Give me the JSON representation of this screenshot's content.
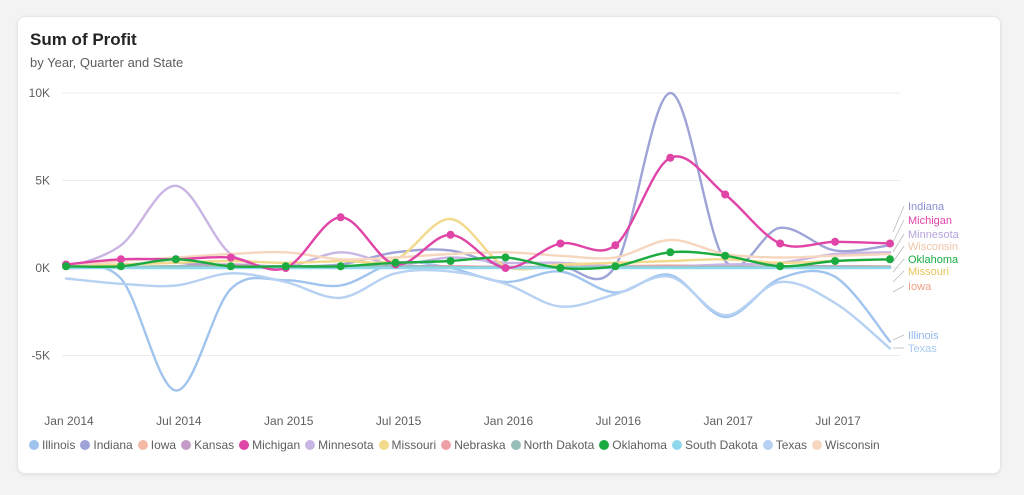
{
  "card": {
    "title": "Sum of Profit",
    "subtitle": "by Year, Quarter and State"
  },
  "chart_data": {
    "type": "line",
    "title": "Sum of Profit",
    "subtitle": "by Year, Quarter and State",
    "xlabel": "",
    "ylabel": "",
    "ylim": [
      -8000,
      10000
    ],
    "y_ticks": [
      {
        "value": 10000,
        "label": "10K"
      },
      {
        "value": 5000,
        "label": "5K"
      },
      {
        "value": 0,
        "label": "0K"
      },
      {
        "value": -5000,
        "label": "-5K"
      }
    ],
    "x_ticks": [
      {
        "index": 0,
        "label": "Jan 2014"
      },
      {
        "index": 2,
        "label": "Jul 2014"
      },
      {
        "index": 4,
        "label": "Jan 2015"
      },
      {
        "index": 6,
        "label": "Jul 2015"
      },
      {
        "index": 8,
        "label": "Jan 2016"
      },
      {
        "index": 10,
        "label": "Jul 2016"
      },
      {
        "index": 12,
        "label": "Jan 2017"
      },
      {
        "index": 14,
        "label": "Jul 2017"
      }
    ],
    "categories": [
      "2014 Q1",
      "2014 Q2",
      "2014 Q3",
      "2014 Q4",
      "2015 Q1",
      "2015 Q2",
      "2015 Q3",
      "2015 Q4",
      "2016 Q1",
      "2016 Q2",
      "2016 Q3",
      "2016 Q4",
      "2017 Q1",
      "2017 Q2",
      "2017 Q3",
      "2017 Q4"
    ],
    "grid": true,
    "legend_position": "bottom",
    "series": [
      {
        "name": "Illinois",
        "color": "#a0c4ee",
        "markers": false,
        "values": [
          0,
          -600,
          -7000,
          -1200,
          -700,
          -1000,
          300,
          0,
          -800,
          -200,
          -1400,
          -400,
          -2800,
          -600,
          -500,
          -4200
        ]
      },
      {
        "name": "Indiana",
        "color": "#9ea3d8",
        "markers": false,
        "values": [
          100,
          200,
          300,
          100,
          100,
          200,
          900,
          1000,
          100,
          100,
          100,
          10000,
          400,
          2300,
          1000,
          1300
        ]
      },
      {
        "name": "Iowa",
        "color": "#f3b9a4",
        "markers": false,
        "values": [
          0,
          50,
          100,
          100,
          50,
          100,
          80,
          50,
          50,
          80,
          100,
          150,
          100,
          50,
          100,
          100
        ]
      },
      {
        "name": "Kansas",
        "color": "#c49ac6",
        "markers": false,
        "values": [
          0,
          50,
          100,
          200,
          50,
          100,
          100,
          100,
          50,
          50,
          50,
          50,
          50,
          100,
          100,
          50
        ]
      },
      {
        "name": "Michigan",
        "color": "#e044a7",
        "markers": true,
        "values": [
          200,
          500,
          500,
          600,
          0,
          2900,
          200,
          1900,
          0,
          1400,
          1300,
          6300,
          4200,
          1400,
          1500,
          1400
        ]
      },
      {
        "name": "Minnesota",
        "color": "#c9b5e4",
        "markers": false,
        "values": [
          0,
          1300,
          4700,
          800,
          100,
          900,
          200,
          600,
          300,
          300,
          100,
          100,
          200,
          300,
          800,
          900
        ]
      },
      {
        "name": "Missouri",
        "color": "#f2d98b",
        "markers": false,
        "values": [
          100,
          200,
          300,
          400,
          300,
          400,
          500,
          2800,
          100,
          200,
          300,
          400,
          500,
          300,
          400,
          500
        ]
      },
      {
        "name": "Nebraska",
        "color": "#eea0a8",
        "markers": false,
        "values": [
          0,
          50,
          50,
          100,
          50,
          100,
          50,
          100,
          50,
          50,
          50,
          100,
          50,
          50,
          50,
          50
        ]
      },
      {
        "name": "North Dakota",
        "color": "#96bfbb",
        "markers": false,
        "values": [
          0,
          50,
          100,
          50,
          50,
          50,
          100,
          50,
          50,
          50,
          50,
          50,
          50,
          50,
          50,
          50
        ]
      },
      {
        "name": "Oklahoma",
        "color": "#1aab40",
        "markers": true,
        "values": [
          100,
          100,
          500,
          100,
          100,
          100,
          300,
          400,
          600,
          0,
          100,
          900,
          700,
          100,
          400,
          500
        ]
      },
      {
        "name": "South Dakota",
        "color": "#8fd8ec",
        "markers": false,
        "values": [
          0,
          0,
          0,
          0,
          0,
          0,
          0,
          0,
          0,
          0,
          0,
          0,
          0,
          0,
          0,
          0
        ]
      },
      {
        "name": "Texas",
        "color": "#b6d1f2",
        "markers": false,
        "values": [
          -600,
          -900,
          -1000,
          -300,
          -800,
          -1700,
          -300,
          -200,
          -900,
          -2200,
          -1500,
          -500,
          -2700,
          -800,
          -2000,
          -4600
        ]
      },
      {
        "name": "Wisconsin",
        "color": "#f7d6bf",
        "markers": false,
        "values": [
          100,
          400,
          600,
          800,
          900,
          500,
          600,
          800,
          900,
          700,
          600,
          1600,
          800,
          600,
          700,
          800
        ]
      }
    ],
    "end_labels": [
      {
        "text": "Indiana",
        "color": "#8a8fd0"
      },
      {
        "text": "Michigan",
        "color": "#e044a7"
      },
      {
        "text": "Minnesota",
        "color": "#b9a3de"
      },
      {
        "text": "Wisconsin",
        "color": "#f0c5a6"
      },
      {
        "text": "Oklahoma",
        "color": "#1aab40"
      },
      {
        "text": "Missouri",
        "color": "#e8c65a"
      },
      {
        "text": "Iowa",
        "color": "#eea284"
      },
      {
        "text": "Illinois",
        "color": "#8fb6e8"
      },
      {
        "text": "Texas",
        "color": "#a9c8ef"
      }
    ]
  }
}
